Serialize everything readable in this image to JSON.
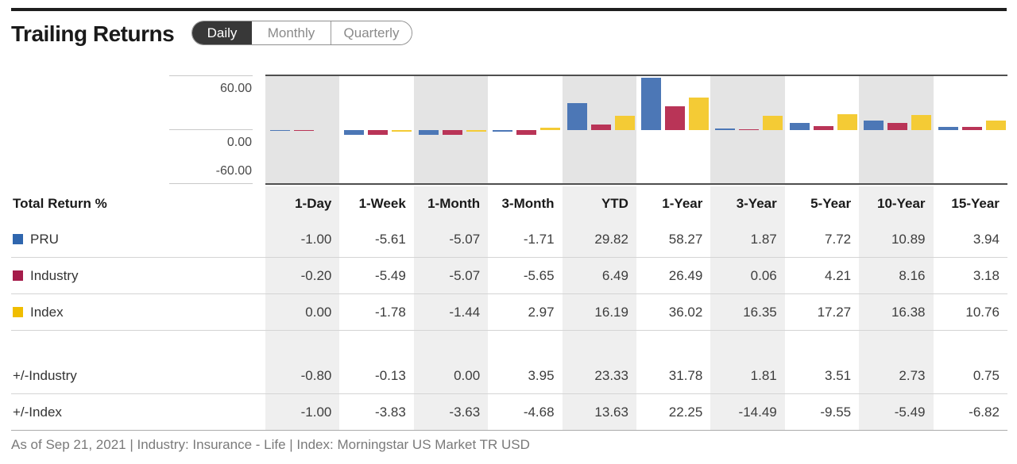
{
  "header": {
    "title": "Trailing Returns",
    "tabs": [
      {
        "label": "Daily",
        "active": true
      },
      {
        "label": "Monthly",
        "active": false
      },
      {
        "label": "Quarterly",
        "active": false
      }
    ]
  },
  "chart_data": {
    "type": "bar",
    "title": "Trailing Returns bar chart",
    "categories": [
      "1-Day",
      "1-Week",
      "1-Month",
      "3-Month",
      "YTD",
      "1-Year",
      "3-Year",
      "5-Year",
      "10-Year",
      "15-Year"
    ],
    "series": [
      {
        "name": "PRU",
        "values": [
          -1.0,
          -5.61,
          -5.07,
          -1.71,
          29.82,
          58.27,
          1.87,
          7.72,
          10.89,
          3.94
        ]
      },
      {
        "name": "Industry",
        "values": [
          -0.2,
          -5.49,
          -5.07,
          -5.65,
          6.49,
          26.49,
          0.06,
          4.21,
          8.16,
          3.18
        ]
      },
      {
        "name": "Index",
        "values": [
          0.0,
          -1.78,
          -1.44,
          2.97,
          16.19,
          36.02,
          16.35,
          17.27,
          16.38,
          10.76
        ]
      }
    ],
    "y_ticks": [
      "60.00",
      "0.00",
      "-60.00"
    ],
    "ylim": [
      -60,
      60
    ],
    "grid": "horizontal-ticks-in-gutter",
    "legend_position": "table-row-labels",
    "striped_columns": [
      0,
      2,
      4,
      6,
      8
    ]
  },
  "table": {
    "corner_label": "Total Return %",
    "columns": [
      "1-Day",
      "1-Week",
      "1-Month",
      "3-Month",
      "YTD",
      "1-Year",
      "3-Year",
      "5-Year",
      "10-Year",
      "15-Year"
    ],
    "rows": [
      {
        "label": "PRU",
        "swatch": "pru",
        "values": [
          "-1.00",
          "-5.61",
          "-5.07",
          "-1.71",
          "29.82",
          "58.27",
          "1.87",
          "7.72",
          "10.89",
          "3.94"
        ]
      },
      {
        "label": "Industry",
        "swatch": "industry",
        "values": [
          "-0.20",
          "-5.49",
          "-5.07",
          "-5.65",
          "6.49",
          "26.49",
          "0.06",
          "4.21",
          "8.16",
          "3.18"
        ]
      },
      {
        "label": "Index",
        "swatch": "index",
        "values": [
          "0.00",
          "-1.78",
          "-1.44",
          "2.97",
          "16.19",
          "36.02",
          "16.35",
          "17.27",
          "16.38",
          "10.76"
        ]
      },
      {
        "label": "+/-Industry",
        "swatch": null,
        "values": [
          "-0.80",
          "-0.13",
          "0.00",
          "3.95",
          "23.33",
          "31.78",
          "1.81",
          "3.51",
          "2.73",
          "0.75"
        ]
      },
      {
        "label": "+/-Index",
        "swatch": null,
        "values": [
          "-1.00",
          "-3.83",
          "-3.63",
          "-4.68",
          "13.63",
          "22.25",
          "-14.49",
          "-9.55",
          "-5.49",
          "-6.82"
        ]
      }
    ]
  },
  "footer": {
    "text": "As of Sep 21, 2021 | Industry: Insurance - Life | Index: Morningstar US Market TR USD"
  },
  "colors": {
    "pru": "#2f66ae",
    "industry": "#a51c4a",
    "index": "#f0bd00",
    "pru_bar": "#4c77b6",
    "industry_bar": "#b93457",
    "index_bar": "#f4cb35"
  }
}
